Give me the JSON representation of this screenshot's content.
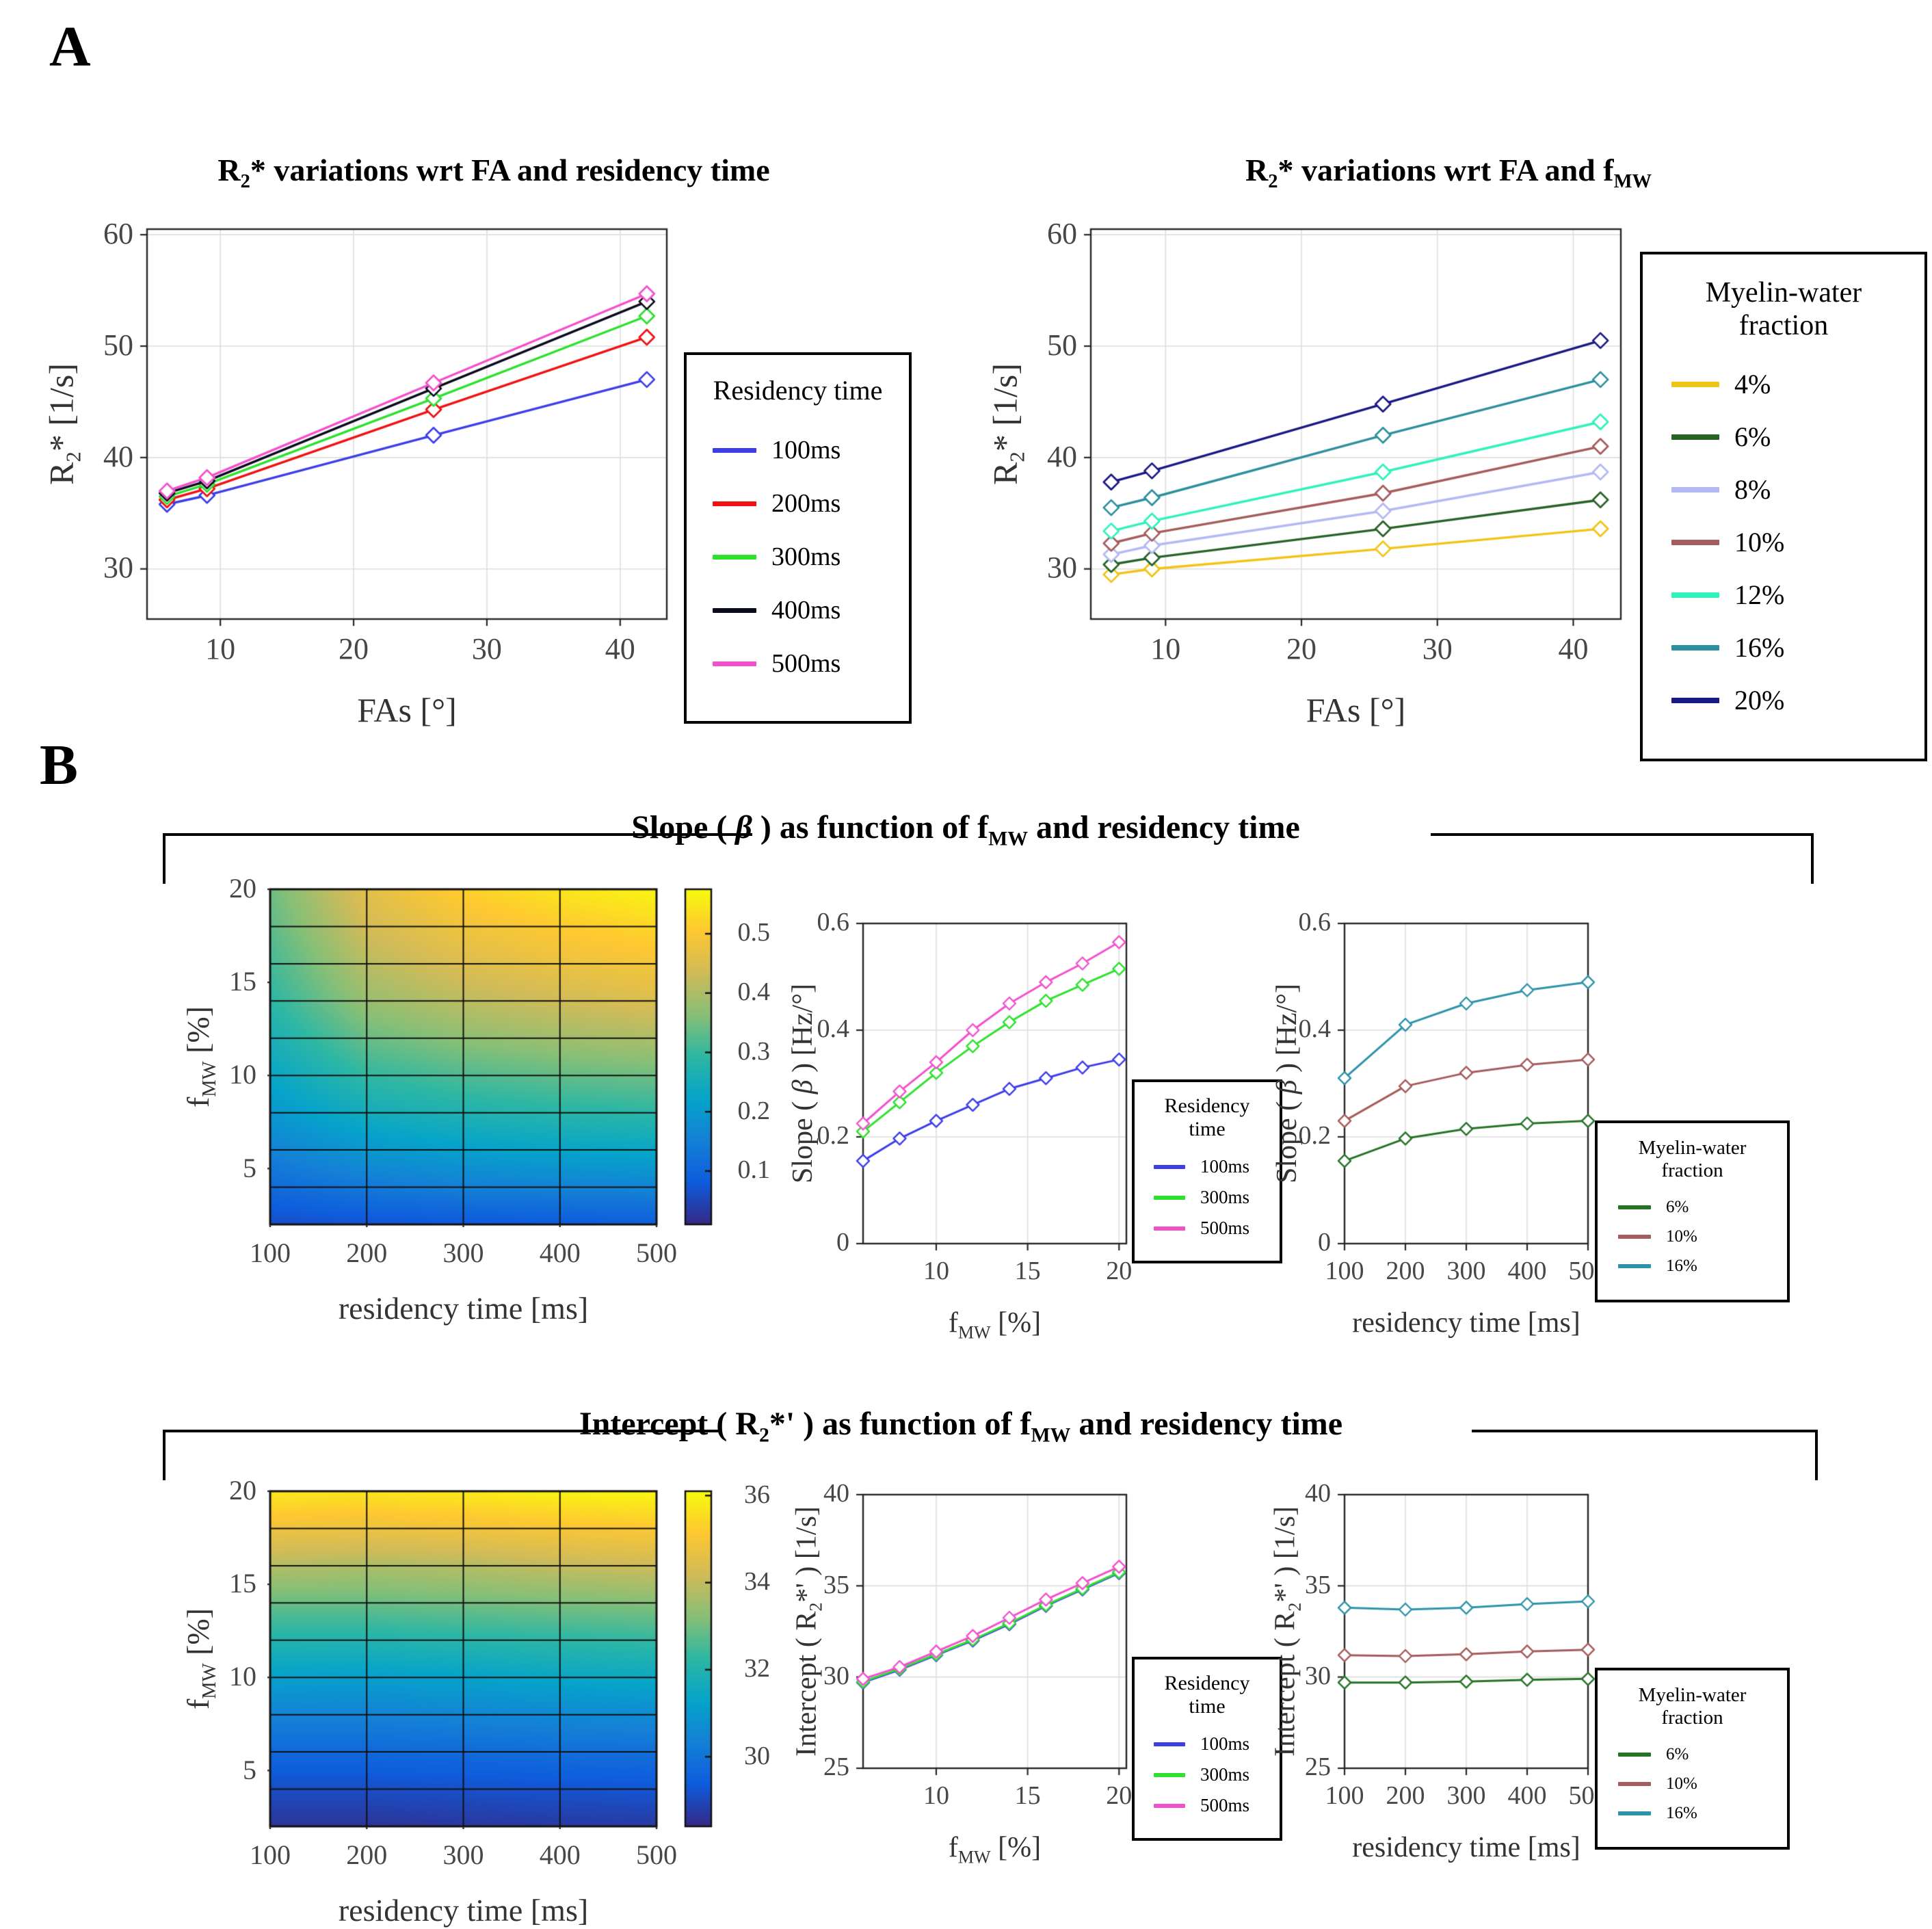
{
  "figure": {
    "panel_a": "A",
    "panel_b": "B"
  },
  "sections": {
    "slope": {
      "title": "Slope ( β ) as function of  f_{MW} and residency time"
    },
    "intercept": {
      "title": "Intercept  ( R_{2}*' ) as function of  f_{MW} and residency time"
    }
  },
  "palette": {
    "parula_colormap": [
      "#352a87",
      "#0f5cdd",
      "#1481d6",
      "#06a4ca",
      "#2eb7a4",
      "#87bf77",
      "#d1bb59",
      "#fec832",
      "#f9fb0e"
    ],
    "grid": "#dedede",
    "axis": "#262626",
    "tick_text": "#474747"
  },
  "chart_data": [
    {
      "id": "a_left",
      "type": "line",
      "title": "R_{2}* variations wrt FA and residency time",
      "xlabel": "FAs [°]",
      "ylabel": "R_{2}* [1/s]",
      "x": [
        6,
        9,
        26,
        42
      ],
      "xlim": [
        4.5,
        43.5
      ],
      "xticks": [
        10,
        20,
        30,
        40
      ],
      "ylim": [
        25.5,
        60.5
      ],
      "yticks": [
        30,
        40,
        50,
        60
      ],
      "legend": {
        "title": "Residency time"
      },
      "series": [
        {
          "name": "100ms",
          "color": "#3E3EE8",
          "values": [
            35.8,
            36.6,
            42.0,
            47.0
          ]
        },
        {
          "name": "200ms",
          "color": "#EF1212",
          "values": [
            36.2,
            37.2,
            44.3,
            50.8
          ]
        },
        {
          "name": "300ms",
          "color": "#2FE02F",
          "values": [
            36.5,
            37.6,
            45.3,
            52.7
          ]
        },
        {
          "name": "400ms",
          "color": "#0B0B1E",
          "values": [
            36.8,
            37.9,
            46.2,
            54.0
          ]
        },
        {
          "name": "500ms",
          "color": "#F251CC",
          "values": [
            37.0,
            38.2,
            46.7,
            54.7
          ]
        }
      ]
    },
    {
      "id": "a_right",
      "type": "line",
      "title": "R_{2}* variations wrt FA and f_{MW}",
      "xlabel": "FAs [°]",
      "ylabel": "R_{2}* [1/s]",
      "x": [
        6,
        9,
        26,
        42
      ],
      "xlim": [
        4.5,
        43.5
      ],
      "xticks": [
        10,
        20,
        30,
        40
      ],
      "ylim": [
        25.5,
        60.5
      ],
      "yticks": [
        30,
        40,
        50,
        60
      ],
      "legend": {
        "title": "Myelin-water fraction"
      },
      "series": [
        {
          "name": "4%",
          "color": "#F3C314",
          "values": [
            29.5,
            30.0,
            31.8,
            33.6
          ]
        },
        {
          "name": "6%",
          "color": "#276327",
          "values": [
            30.4,
            31.0,
            33.6,
            36.2
          ]
        },
        {
          "name": "8%",
          "color": "#B4B9F4",
          "values": [
            31.3,
            32.1,
            35.2,
            38.7
          ]
        },
        {
          "name": "10%",
          "color": "#A55C5C",
          "values": [
            32.3,
            33.2,
            36.8,
            41.0
          ]
        },
        {
          "name": "12%",
          "color": "#30F2BB",
          "values": [
            33.4,
            34.3,
            38.7,
            43.2
          ]
        },
        {
          "name": "16%",
          "color": "#2E8F9E",
          "values": [
            35.5,
            36.4,
            42.0,
            47.0
          ]
        },
        {
          "name": "20%",
          "color": "#191983",
          "values": [
            37.8,
            38.8,
            44.8,
            50.5
          ]
        }
      ]
    },
    {
      "id": "b1_heat",
      "type": "heatmap",
      "xlabel": "residency time [ms]",
      "ylabel": "f_{MW} [%]",
      "x": [
        100,
        200,
        300,
        400,
        500
      ],
      "y": [
        2,
        4,
        6,
        8,
        10,
        12,
        14,
        16,
        18,
        20
      ],
      "xticks": [
        100,
        200,
        300,
        400,
        500
      ],
      "yticks": [
        5,
        10,
        15,
        20
      ],
      "values": [
        [
          0.06,
          0.07,
          0.075,
          0.08,
          0.085
        ],
        [
          0.11,
          0.135,
          0.15,
          0.155,
          0.16
        ],
        [
          0.155,
          0.197,
          0.215,
          0.225,
          0.23
        ],
        [
          0.197,
          0.25,
          0.27,
          0.283,
          0.29
        ],
        [
          0.23,
          0.295,
          0.32,
          0.335,
          0.345
        ],
        [
          0.26,
          0.34,
          0.37,
          0.388,
          0.4
        ],
        [
          0.29,
          0.38,
          0.414,
          0.433,
          0.45
        ],
        [
          0.31,
          0.41,
          0.45,
          0.475,
          0.49
        ],
        [
          0.33,
          0.437,
          0.483,
          0.507,
          0.525
        ],
        [
          0.345,
          0.46,
          0.515,
          0.545,
          0.565
        ]
      ],
      "colorbar": {
        "range": [
          0.01,
          0.575
        ],
        "ticks": [
          0.1,
          0.2,
          0.3,
          0.4,
          0.5
        ]
      }
    },
    {
      "id": "b1_mid",
      "type": "line",
      "xlabel": "f_{MW} [%]",
      "ylabel": "Slope ( β ) [Hz/°]",
      "x": [
        6,
        8,
        10,
        12,
        14,
        16,
        18,
        20
      ],
      "xlim": [
        6,
        20.4
      ],
      "xticks": [
        10,
        15,
        20
      ],
      "ylim": [
        0,
        0.6
      ],
      "yticks": [
        0,
        0.2,
        0.4,
        0.6
      ],
      "legend": {
        "title": "Residency time"
      },
      "series": [
        {
          "name": "100ms",
          "color": "#3E3EE8",
          "values": [
            0.155,
            0.197,
            0.23,
            0.26,
            0.29,
            0.31,
            0.33,
            0.345
          ]
        },
        {
          "name": "300ms",
          "color": "#2FE02F",
          "values": [
            0.21,
            0.265,
            0.32,
            0.37,
            0.415,
            0.455,
            0.485,
            0.515
          ]
        },
        {
          "name": "500ms",
          "color": "#F251CC",
          "values": [
            0.225,
            0.285,
            0.34,
            0.4,
            0.45,
            0.49,
            0.525,
            0.565
          ]
        }
      ]
    },
    {
      "id": "b1_right",
      "type": "line",
      "xlabel": "residency time [ms]",
      "ylabel": "Slope ( β ) [Hz/°]",
      "x": [
        100,
        200,
        300,
        400,
        500
      ],
      "xlim": [
        100,
        500
      ],
      "xticks": [
        100,
        200,
        300,
        400,
        500
      ],
      "ylim": [
        0,
        0.6
      ],
      "yticks": [
        0,
        0.2,
        0.4,
        0.6
      ],
      "legend": {
        "title": "Myelin-water fraction"
      },
      "series": [
        {
          "name": "6%",
          "color": "#267326",
          "values": [
            0.155,
            0.197,
            0.215,
            0.225,
            0.23
          ]
        },
        {
          "name": "10%",
          "color": "#A55C5C",
          "values": [
            0.23,
            0.295,
            0.32,
            0.335,
            0.345
          ]
        },
        {
          "name": "16%",
          "color": "#2E93A8",
          "values": [
            0.31,
            0.41,
            0.45,
            0.475,
            0.49
          ]
        }
      ]
    },
    {
      "id": "b2_heat",
      "type": "heatmap",
      "xlabel": "residency time [ms]",
      "ylabel": "f_{MW} [%]",
      "x": [
        100,
        200,
        300,
        400,
        500
      ],
      "y": [
        2,
        4,
        6,
        8,
        10,
        12,
        14,
        16,
        18,
        20
      ],
      "xticks": [
        100,
        200,
        300,
        400,
        500
      ],
      "yticks": [
        5,
        10,
        15,
        20
      ],
      "values": [
        [
          28.6,
          28.6,
          28.65,
          28.7,
          28.7
        ],
        [
          29.1,
          29.1,
          29.15,
          29.2,
          29.25
        ],
        [
          29.7,
          29.7,
          29.75,
          29.85,
          29.9
        ],
        [
          30.4,
          30.4,
          30.45,
          30.55,
          30.6
        ],
        [
          31.2,
          31.15,
          31.25,
          31.4,
          31.5
        ],
        [
          32.0,
          32.0,
          32.1,
          32.2,
          32.3
        ],
        [
          32.9,
          32.9,
          33.0,
          33.1,
          33.2
        ],
        [
          33.8,
          33.7,
          33.8,
          34.0,
          34.15
        ],
        [
          34.8,
          34.75,
          34.85,
          35.0,
          35.1
        ],
        [
          35.75,
          35.7,
          35.8,
          35.95,
          36.05
        ]
      ],
      "colorbar": {
        "range": [
          28.4,
          36.1
        ],
        "ticks": [
          30,
          32,
          34,
          36
        ]
      }
    },
    {
      "id": "b2_mid",
      "type": "line",
      "xlabel": "f_{MW} [%]",
      "ylabel": "Intercept ( R_{2}*' ) [1/s]",
      "x": [
        6,
        8,
        10,
        12,
        14,
        16,
        18,
        20
      ],
      "xlim": [
        6,
        20.4
      ],
      "xticks": [
        10,
        15,
        20
      ],
      "ylim": [
        25,
        40
      ],
      "yticks": [
        25,
        30,
        35,
        40
      ],
      "legend": {
        "title": "Residency time"
      },
      "series": [
        {
          "name": "100ms",
          "color": "#3E3EE8",
          "values": [
            29.7,
            30.4,
            31.2,
            32.0,
            32.9,
            33.9,
            34.8,
            35.7
          ]
        },
        {
          "name": "300ms",
          "color": "#2FE02F",
          "values": [
            29.75,
            30.45,
            31.25,
            32.05,
            32.95,
            33.95,
            34.85,
            35.75
          ]
        },
        {
          "name": "500ms",
          "color": "#F251CC",
          "values": [
            29.9,
            30.55,
            31.4,
            32.25,
            33.25,
            34.25,
            35.15,
            36.05
          ]
        }
      ]
    },
    {
      "id": "b2_right",
      "type": "line",
      "xlabel": "residency time [ms]",
      "ylabel": "Intercept ( R_{2}*' ) [1/s]",
      "x": [
        100,
        200,
        300,
        400,
        500
      ],
      "xlim": [
        100,
        500
      ],
      "xticks": [
        100,
        200,
        300,
        400,
        500
      ],
      "ylim": [
        25,
        40
      ],
      "yticks": [
        25,
        30,
        35,
        40
      ],
      "legend": {
        "title": "Myelin-water fraction"
      },
      "series": [
        {
          "name": "6%",
          "color": "#267326",
          "values": [
            29.7,
            29.7,
            29.75,
            29.85,
            29.9
          ]
        },
        {
          "name": "10%",
          "color": "#A55C5C",
          "values": [
            31.2,
            31.15,
            31.25,
            31.4,
            31.5
          ]
        },
        {
          "name": "16%",
          "color": "#2E93A8",
          "values": [
            33.8,
            33.7,
            33.8,
            34.0,
            34.15
          ]
        }
      ]
    }
  ]
}
